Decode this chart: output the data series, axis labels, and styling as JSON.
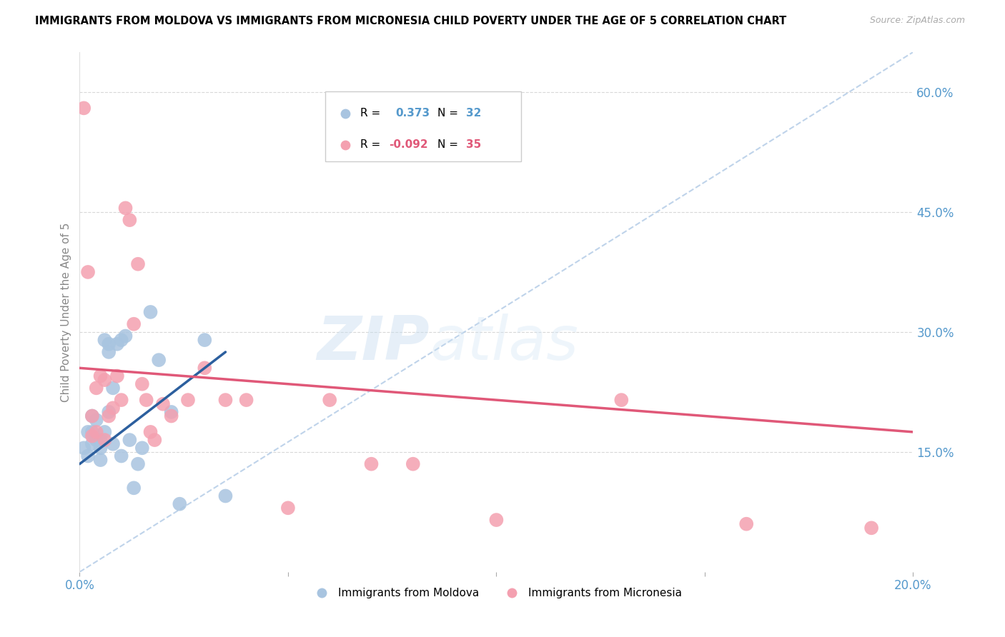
{
  "title": "IMMIGRANTS FROM MOLDOVA VS IMMIGRANTS FROM MICRONESIA CHILD POVERTY UNDER THE AGE OF 5 CORRELATION CHART",
  "source": "Source: ZipAtlas.com",
  "ylabel": "Child Poverty Under the Age of 5",
  "xlim": [
    0.0,
    0.2
  ],
  "ylim": [
    0.0,
    0.65
  ],
  "xticks": [
    0.0,
    0.05,
    0.1,
    0.15,
    0.2
  ],
  "xticklabels": [
    "0.0%",
    "",
    "",
    "",
    "20.0%"
  ],
  "yticks_right": [
    0.15,
    0.3,
    0.45,
    0.6
  ],
  "ytick_labels_right": [
    "15.0%",
    "30.0%",
    "45.0%",
    "60.0%"
  ],
  "moldova_color": "#a8c4e0",
  "micronesia_color": "#f4a0b0",
  "moldova_line_color": "#2c5f9e",
  "micronesia_line_color": "#e05878",
  "ref_line_color": "#b8cfe8",
  "watermark_zip": "ZIP",
  "watermark_atlas": "atlas",
  "moldova_trend_x": [
    0.0,
    0.035
  ],
  "moldova_trend_y": [
    0.135,
    0.275
  ],
  "micronesia_trend_x": [
    0.0,
    0.2
  ],
  "micronesia_trend_y": [
    0.255,
    0.175
  ],
  "ref_line_x": [
    0.0,
    0.2
  ],
  "ref_line_y": [
    0.0,
    0.65
  ],
  "moldova_x": [
    0.001,
    0.002,
    0.002,
    0.003,
    0.003,
    0.003,
    0.004,
    0.004,
    0.005,
    0.005,
    0.005,
    0.006,
    0.006,
    0.007,
    0.007,
    0.007,
    0.008,
    0.008,
    0.009,
    0.01,
    0.01,
    0.011,
    0.012,
    0.013,
    0.014,
    0.015,
    0.017,
    0.019,
    0.022,
    0.024,
    0.03,
    0.035
  ],
  "moldova_y": [
    0.155,
    0.145,
    0.175,
    0.16,
    0.175,
    0.195,
    0.165,
    0.19,
    0.14,
    0.155,
    0.165,
    0.175,
    0.29,
    0.2,
    0.275,
    0.285,
    0.16,
    0.23,
    0.285,
    0.145,
    0.29,
    0.295,
    0.165,
    0.105,
    0.135,
    0.155,
    0.325,
    0.265,
    0.2,
    0.085,
    0.29,
    0.095
  ],
  "micronesia_x": [
    0.001,
    0.002,
    0.003,
    0.003,
    0.004,
    0.004,
    0.005,
    0.006,
    0.006,
    0.007,
    0.008,
    0.009,
    0.01,
    0.011,
    0.012,
    0.013,
    0.014,
    0.015,
    0.016,
    0.017,
    0.018,
    0.02,
    0.022,
    0.026,
    0.03,
    0.035,
    0.04,
    0.05,
    0.06,
    0.07,
    0.08,
    0.1,
    0.13,
    0.16,
    0.19
  ],
  "micronesia_y": [
    0.58,
    0.375,
    0.17,
    0.195,
    0.175,
    0.23,
    0.245,
    0.24,
    0.165,
    0.195,
    0.205,
    0.245,
    0.215,
    0.455,
    0.44,
    0.31,
    0.385,
    0.235,
    0.215,
    0.175,
    0.165,
    0.21,
    0.195,
    0.215,
    0.255,
    0.215,
    0.215,
    0.08,
    0.215,
    0.135,
    0.135,
    0.065,
    0.215,
    0.06,
    0.055
  ]
}
